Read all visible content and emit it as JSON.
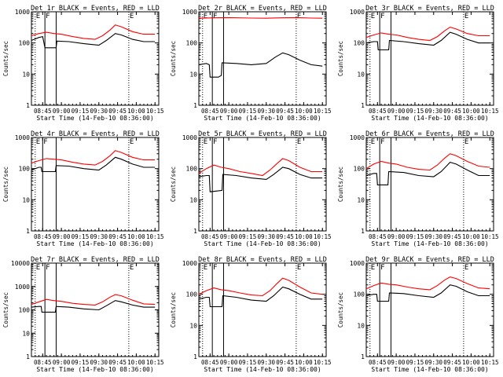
{
  "colors": {
    "events": "#000000",
    "lld": "#ff0000",
    "axes": "#000000",
    "background": "#ffffff"
  },
  "chart_data": [
    {
      "type": "line",
      "title": "Det 1r BLACK = Events, RED = LLD",
      "xlabel": "Start Time (14-Feb-10 08:36:00)",
      "ylabel": "Counts/sec",
      "y_scale": "log",
      "ylim": [
        1,
        1000
      ],
      "y_ticks": [
        "1",
        "10",
        "100",
        "1000"
      ],
      "x_ticks": [
        "08:45",
        "09:00",
        "09:15",
        "09:30",
        "09:45",
        "10:00",
        "10:15"
      ],
      "xlim": [
        8.6,
        10.3
      ],
      "markers": [
        {
          "label": "E",
          "x": 8.65,
          "style": "dotted"
        },
        {
          "label": "F",
          "x": 8.78,
          "style": "solid"
        },
        {
          "label": "",
          "x": 8.93,
          "style": "solid"
        },
        {
          "label": "E",
          "x": 9.9,
          "style": "dotted"
        }
      ],
      "series": [
        {
          "name": "Events",
          "x": [
            8.6,
            8.7,
            8.75,
            8.78,
            8.79,
            8.9,
            8.93,
            8.94,
            9.1,
            9.3,
            9.5,
            9.6,
            9.72,
            9.8,
            9.95,
            10.1,
            10.25
          ],
          "y": [
            120,
            150,
            160,
            70,
            70,
            70,
            70,
            115,
            110,
            95,
            85,
            120,
            200,
            180,
            130,
            110,
            110
          ]
        },
        {
          "name": "LLD",
          "x": [
            8.6,
            8.7,
            8.8,
            8.9,
            9.0,
            9.15,
            9.3,
            9.45,
            9.55,
            9.65,
            9.72,
            9.8,
            9.95,
            10.1,
            10.25
          ],
          "y": [
            170,
            200,
            220,
            200,
            190,
            160,
            140,
            130,
            170,
            260,
            380,
            330,
            230,
            190,
            190
          ]
        }
      ]
    },
    {
      "type": "line",
      "title": "Det 2r BLACK = Events, RED = LLD",
      "xlabel": "Start Time (14-Feb-10 08:36:00)",
      "ylabel": "Counts/sec",
      "y_scale": "log",
      "ylim": [
        1,
        1000
      ],
      "y_ticks": [
        "1",
        "10",
        "100",
        "1000"
      ],
      "x_ticks": [
        "08:45",
        "09:00",
        "09:15",
        "09:30",
        "09:45",
        "10:00",
        "10:15"
      ],
      "xlim": [
        8.6,
        10.3
      ],
      "markers": [
        {
          "label": "E",
          "x": 8.65,
          "style": "dotted"
        },
        {
          "label": "F",
          "x": 8.78,
          "style": "solid"
        },
        {
          "label": "",
          "x": 8.93,
          "style": "solid"
        },
        {
          "label": "E",
          "x": 9.9,
          "style": "dotted"
        }
      ],
      "series": [
        {
          "name": "Events",
          "x": [
            8.6,
            8.7,
            8.74,
            8.75,
            8.86,
            8.9,
            8.91,
            9.1,
            9.3,
            9.5,
            9.62,
            9.72,
            9.8,
            9.95,
            10.1,
            10.25
          ],
          "y": [
            20,
            22,
            20,
            8,
            8,
            9,
            23,
            22,
            20,
            22,
            35,
            48,
            42,
            28,
            20,
            18
          ]
        },
        {
          "name": "LLD",
          "x": [
            8.6,
            8.8,
            9.0,
            9.3,
            9.5,
            9.7,
            9.9,
            10.1,
            10.25
          ],
          "y": [
            620,
            640,
            650,
            630,
            620,
            640,
            650,
            630,
            620
          ]
        }
      ]
    },
    {
      "type": "line",
      "title": "Det 3r BLACK = Events, RED = LLD",
      "xlabel": "Start Time (14-Feb-10 08:36:00)",
      "ylabel": "Counts/sec",
      "y_scale": "log",
      "ylim": [
        1,
        1000
      ],
      "y_ticks": [
        "1",
        "10",
        "100",
        "1000"
      ],
      "x_ticks": [
        "08:45",
        "09:00",
        "09:15",
        "09:30",
        "09:45",
        "10:00",
        "10:15"
      ],
      "xlim": [
        8.6,
        10.3
      ],
      "markers": [
        {
          "label": "E",
          "x": 8.65,
          "style": "dotted"
        },
        {
          "label": "F",
          "x": 8.78,
          "style": "solid"
        },
        {
          "label": "",
          "x": 8.93,
          "style": "solid"
        },
        {
          "label": "E",
          "x": 9.9,
          "style": "dotted"
        }
      ],
      "series": [
        {
          "name": "Events",
          "x": [
            8.6,
            8.7,
            8.75,
            8.76,
            8.89,
            8.9,
            8.91,
            9.1,
            9.3,
            9.5,
            9.6,
            9.72,
            9.8,
            9.95,
            10.1,
            10.25
          ],
          "y": [
            100,
            110,
            110,
            60,
            60,
            60,
            120,
            110,
            95,
            85,
            120,
            220,
            190,
            130,
            100,
            100
          ]
        },
        {
          "name": "LLD",
          "x": [
            8.6,
            8.7,
            8.8,
            8.9,
            9.0,
            9.15,
            9.3,
            9.45,
            9.55,
            9.65,
            9.72,
            9.8,
            9.95,
            10.1,
            10.25
          ],
          "y": [
            150,
            180,
            210,
            190,
            180,
            150,
            130,
            120,
            160,
            250,
            320,
            280,
            200,
            170,
            170
          ]
        }
      ]
    },
    {
      "type": "line",
      "title": "Det 4r BLACK = Events, RED = LLD",
      "xlabel": "Start Time (14-Feb-10 08:36:00)",
      "ylabel": "Counts/sec",
      "y_scale": "log",
      "ylim": [
        1,
        1000
      ],
      "y_ticks": [
        "1",
        "10",
        "100",
        "1000"
      ],
      "x_ticks": [
        "08:45",
        "09:00",
        "09:15",
        "09:30",
        "09:45",
        "10:00",
        "10:15"
      ],
      "xlim": [
        8.6,
        10.3
      ],
      "markers": [
        {
          "label": "E",
          "x": 8.65,
          "style": "dotted"
        },
        {
          "label": "F",
          "x": 8.75,
          "style": "solid"
        },
        {
          "label": "",
          "x": 8.93,
          "style": "solid"
        },
        {
          "label": "E",
          "x": 9.9,
          "style": "dotted"
        }
      ],
      "series": [
        {
          "name": "Events",
          "x": [
            8.6,
            8.7,
            8.73,
            8.74,
            8.92,
            8.93,
            9.1,
            9.3,
            9.5,
            9.6,
            9.72,
            9.8,
            9.95,
            10.1,
            10.25
          ],
          "y": [
            90,
            110,
            110,
            80,
            80,
            125,
            120,
            100,
            90,
            130,
            230,
            200,
            140,
            110,
            110
          ]
        },
        {
          "name": "LLD",
          "x": [
            8.6,
            8.7,
            8.8,
            8.9,
            9.0,
            9.15,
            9.3,
            9.45,
            9.55,
            9.65,
            9.72,
            9.8,
            9.95,
            10.1,
            10.25
          ],
          "y": [
            150,
            180,
            210,
            200,
            190,
            160,
            140,
            130,
            170,
            260,
            380,
            330,
            230,
            190,
            190
          ]
        }
      ]
    },
    {
      "type": "line",
      "title": "Det 5r BLACK = Events, RED = LLD",
      "xlabel": "Start Time (14-Feb-10 08:36:00)",
      "ylabel": "Counts/sec",
      "y_scale": "log",
      "ylim": [
        1,
        1000
      ],
      "y_ticks": [
        "1",
        "10",
        "100",
        "1000"
      ],
      "x_ticks": [
        "08:45",
        "09:00",
        "09:15",
        "09:30",
        "09:45",
        "10:00",
        "10:15"
      ],
      "xlim": [
        8.6,
        10.3
      ],
      "markers": [
        {
          "label": "E",
          "x": 8.65,
          "style": "dotted"
        },
        {
          "label": "F",
          "x": 8.78,
          "style": "solid"
        },
        {
          "label": "",
          "x": 8.93,
          "style": "solid"
        },
        {
          "label": "E",
          "x": 9.9,
          "style": "dotted"
        }
      ],
      "series": [
        {
          "name": "Events",
          "x": [
            8.6,
            8.7,
            8.74,
            8.75,
            8.91,
            8.92,
            9.1,
            9.3,
            9.5,
            9.6,
            9.72,
            9.8,
            9.95,
            10.1,
            10.25
          ],
          "y": [
            55,
            60,
            60,
            18,
            20,
            65,
            60,
            50,
            45,
            65,
            110,
            100,
            65,
            50,
            50
          ]
        },
        {
          "name": "LLD",
          "x": [
            8.6,
            8.7,
            8.8,
            8.9,
            9.0,
            9.15,
            9.3,
            9.45,
            9.55,
            9.65,
            9.72,
            9.8,
            9.95,
            10.1,
            10.25
          ],
          "y": [
            70,
            100,
            130,
            110,
            100,
            80,
            70,
            60,
            90,
            150,
            210,
            180,
            110,
            80,
            80
          ]
        }
      ]
    },
    {
      "type": "line",
      "title": "Det 6r BLACK = Events, RED = LLD",
      "xlabel": "Start Time (14-Feb-10 08:36:00)",
      "ylabel": "Counts/sec",
      "y_scale": "log",
      "ylim": [
        1,
        1000
      ],
      "y_ticks": [
        "1",
        "10",
        "100",
        "1000"
      ],
      "x_ticks": [
        "08:45",
        "09:00",
        "09:15",
        "09:30",
        "09:45",
        "10:00",
        "10:15"
      ],
      "xlim": [
        8.6,
        10.3
      ],
      "markers": [
        {
          "label": "E",
          "x": 8.65,
          "style": "dotted"
        },
        {
          "label": "F",
          "x": 8.78,
          "style": "solid"
        },
        {
          "label": "",
          "x": 8.93,
          "style": "solid"
        },
        {
          "label": "E",
          "x": 9.9,
          "style": "dotted"
        }
      ],
      "series": [
        {
          "name": "Events",
          "x": [
            8.6,
            8.7,
            8.74,
            8.75,
            8.89,
            8.9,
            9.1,
            9.3,
            9.5,
            9.6,
            9.72,
            9.8,
            9.95,
            10.1,
            10.25
          ],
          "y": [
            60,
            70,
            70,
            30,
            30,
            80,
            75,
            60,
            55,
            80,
            160,
            140,
            90,
            60,
            60
          ]
        },
        {
          "name": "LLD",
          "x": [
            8.6,
            8.7,
            8.8,
            8.9,
            9.0,
            9.15,
            9.3,
            9.45,
            9.55,
            9.65,
            9.72,
            9.8,
            9.95,
            10.1,
            10.25
          ],
          "y": [
            100,
            140,
            170,
            150,
            140,
            110,
            95,
            90,
            130,
            220,
            300,
            260,
            170,
            120,
            110
          ]
        }
      ]
    },
    {
      "type": "line",
      "title": "Det 7r BLACK = Events, RED = LLD",
      "xlabel": "Start Time (14-Feb-10 08:36:00)",
      "ylabel": "Counts/sec",
      "y_scale": "log",
      "ylim": [
        1,
        10000
      ],
      "y_ticks": [
        "1",
        "10",
        "100",
        "1000",
        "10000"
      ],
      "x_ticks": [
        "08:45",
        "09:00",
        "09:15",
        "09:30",
        "09:45",
        "10:00",
        "10:15"
      ],
      "xlim": [
        8.6,
        10.3
      ],
      "markers": [
        {
          "label": "E",
          "x": 8.65,
          "style": "dotted"
        },
        {
          "label": "F",
          "x": 8.78,
          "style": "solid"
        },
        {
          "label": "",
          "x": 8.93,
          "style": "solid"
        },
        {
          "label": "E",
          "x": 9.9,
          "style": "dotted"
        }
      ],
      "series": [
        {
          "name": "Events",
          "x": [
            8.6,
            8.7,
            8.73,
            8.74,
            8.92,
            8.93,
            9.1,
            9.3,
            9.5,
            9.6,
            9.72,
            9.8,
            9.95,
            10.1,
            10.25
          ],
          "y": [
            130,
            140,
            140,
            80,
            80,
            140,
            130,
            110,
            100,
            150,
            250,
            220,
            160,
            130,
            130
          ]
        },
        {
          "name": "LLD",
          "x": [
            8.6,
            8.7,
            8.8,
            8.9,
            9.0,
            9.15,
            9.3,
            9.45,
            9.55,
            9.65,
            9.72,
            9.8,
            9.95,
            10.1,
            10.25
          ],
          "y": [
            170,
            220,
            280,
            250,
            230,
            190,
            170,
            160,
            220,
            350,
            450,
            400,
            260,
            180,
            170
          ]
        }
      ]
    },
    {
      "type": "line",
      "title": "Det 8r BLACK = Events, RED = LLD",
      "xlabel": "Start Time (14-Feb-10 08:36:00)",
      "ylabel": "Counts/sec",
      "y_scale": "log",
      "ylim": [
        1,
        1000
      ],
      "y_ticks": [
        "1",
        "10",
        "100",
        "1000"
      ],
      "x_ticks": [
        "08:45",
        "09:00",
        "09:15",
        "09:30",
        "09:45",
        "10:00",
        "10:15"
      ],
      "xlim": [
        8.6,
        10.3
      ],
      "markers": [
        {
          "label": "E",
          "x": 8.65,
          "style": "dotted"
        },
        {
          "label": "F",
          "x": 8.78,
          "style": "solid"
        },
        {
          "label": "",
          "x": 8.93,
          "style": "solid"
        },
        {
          "label": "E",
          "x": 9.9,
          "style": "dotted"
        }
      ],
      "series": [
        {
          "name": "Events",
          "x": [
            8.6,
            8.7,
            8.74,
            8.75,
            8.91,
            8.92,
            9.1,
            9.3,
            9.5,
            9.6,
            9.72,
            9.8,
            9.95,
            10.1,
            10.25
          ],
          "y": [
            70,
            80,
            80,
            40,
            40,
            90,
            80,
            65,
            60,
            90,
            170,
            150,
            100,
            70,
            70
          ]
        },
        {
          "name": "LLD",
          "x": [
            8.6,
            8.7,
            8.8,
            8.9,
            9.0,
            9.15,
            9.3,
            9.45,
            9.55,
            9.65,
            9.72,
            9.8,
            9.95,
            10.1,
            10.25
          ],
          "y": [
            100,
            130,
            160,
            140,
            130,
            110,
            95,
            90,
            130,
            230,
            330,
            280,
            170,
            110,
            100
          ]
        }
      ]
    },
    {
      "type": "line",
      "title": "Det 9r BLACK = Events, RED = LLD",
      "xlabel": "Start Time (14-Feb-10 08:36:00)",
      "ylabel": "Counts/sec",
      "y_scale": "log",
      "ylim": [
        1,
        1000
      ],
      "y_ticks": [
        "1",
        "10",
        "100",
        "1000"
      ],
      "x_ticks": [
        "08:45",
        "09:00",
        "09:15",
        "09:30",
        "09:45",
        "10:00",
        "10:15"
      ],
      "xlim": [
        8.6,
        10.3
      ],
      "markers": [
        {
          "label": "E",
          "x": 8.65,
          "style": "dotted"
        },
        {
          "label": "F",
          "x": 8.78,
          "style": "solid"
        },
        {
          "label": "",
          "x": 8.93,
          "style": "solid"
        },
        {
          "label": "E",
          "x": 9.9,
          "style": "dotted"
        }
      ],
      "series": [
        {
          "name": "Events",
          "x": [
            8.6,
            8.7,
            8.74,
            8.75,
            8.9,
            8.91,
            9.1,
            9.3,
            9.5,
            9.6,
            9.72,
            9.8,
            9.95,
            10.1,
            10.25
          ],
          "y": [
            90,
            100,
            100,
            60,
            60,
            110,
            105,
            90,
            80,
            110,
            200,
            180,
            120,
            90,
            90
          ]
        },
        {
          "name": "LLD",
          "x": [
            8.6,
            8.7,
            8.8,
            8.9,
            9.0,
            9.15,
            9.3,
            9.45,
            9.55,
            9.65,
            9.72,
            9.8,
            9.95,
            10.1,
            10.25
          ],
          "y": [
            150,
            190,
            230,
            210,
            200,
            170,
            150,
            140,
            190,
            290,
            360,
            320,
            220,
            160,
            150
          ]
        }
      ]
    }
  ]
}
